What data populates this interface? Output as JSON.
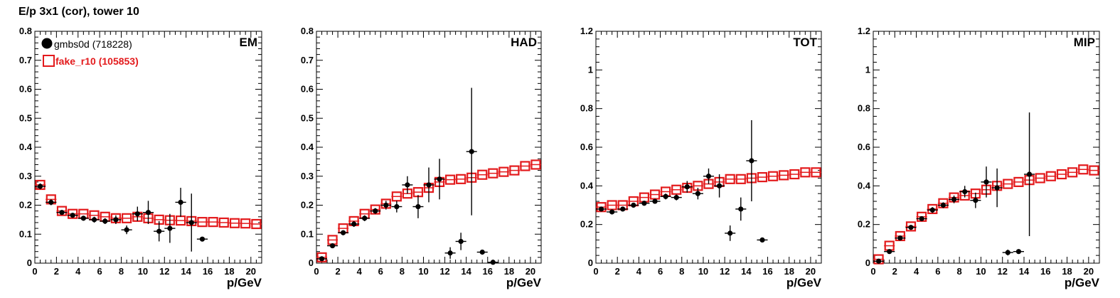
{
  "figure": {
    "title": "E/p 3x1 (cor), tower 10"
  },
  "legend": {
    "series_a": "gmbs0d (718228)",
    "series_b": "fake_r10 (105853)"
  },
  "colors": {
    "series_a": "#000000",
    "series_b": "#e31a1c"
  },
  "chart_data": [
    {
      "type": "scatter",
      "panel": "EM",
      "xlabel": "p/GeV",
      "xlim": [
        0,
        21
      ],
      "ylim": [
        0,
        0.8
      ],
      "xticks": [
        "0",
        "2",
        "4",
        "6",
        "8",
        "10",
        "12",
        "14",
        "16",
        "18",
        "20"
      ],
      "yticks": [
        "0",
        "0.1",
        "0.2",
        "0.3",
        "0.4",
        "0.5",
        "0.6",
        "0.7",
        "0.8"
      ],
      "legend_placement": "top-left",
      "series": [
        {
          "name": "gmbs0d (718228)",
          "marker": "filled-circle",
          "x": [
            0.5,
            1.5,
            2.5,
            3.5,
            4.5,
            5.5,
            6.5,
            7.5,
            8.5,
            9.5,
            10.5,
            11.5,
            12.5,
            13.5,
            14.5,
            15.5
          ],
          "y": [
            0.265,
            0.21,
            0.175,
            0.165,
            0.155,
            0.15,
            0.145,
            0.15,
            0.115,
            0.17,
            0.175,
            0.11,
            0.12,
            0.21,
            0.14,
            0.083
          ],
          "yerr": [
            0.01,
            0.01,
            0.008,
            0.008,
            0.008,
            0.01,
            0.01,
            0.015,
            0.015,
            0.025,
            0.04,
            0.035,
            0.05,
            0.05,
            0.1,
            0.005
          ]
        },
        {
          "name": "fake_r10 (105853)",
          "marker": "open-square",
          "x": [
            0.5,
            1.5,
            2.5,
            3.5,
            4.5,
            5.5,
            6.5,
            7.5,
            8.5,
            9.5,
            10.5,
            11.5,
            12.5,
            13.5,
            14.5,
            15.5,
            16.5,
            17.5,
            18.5,
            19.5,
            20.5
          ],
          "y": [
            0.27,
            0.22,
            0.18,
            0.17,
            0.17,
            0.165,
            0.16,
            0.155,
            0.155,
            0.16,
            0.155,
            0.15,
            0.148,
            0.147,
            0.145,
            0.142,
            0.142,
            0.14,
            0.138,
            0.137,
            0.135
          ]
        }
      ]
    },
    {
      "type": "scatter",
      "panel": "HAD",
      "xlabel": "p/GeV",
      "xlim": [
        0,
        21
      ],
      "ylim": [
        0,
        0.8
      ],
      "xticks": [
        "0",
        "2",
        "4",
        "6",
        "8",
        "10",
        "12",
        "14",
        "16",
        "18",
        "20"
      ],
      "yticks": [
        "0",
        "0.1",
        "0.2",
        "0.3",
        "0.4",
        "0.5",
        "0.6",
        "0.7",
        "0.8"
      ],
      "series": [
        {
          "name": "gmbs0d (718228)",
          "marker": "filled-circle",
          "x": [
            0.5,
            1.5,
            2.5,
            3.5,
            4.5,
            5.5,
            6.5,
            7.5,
            8.5,
            9.5,
            10.5,
            11.5,
            12.5,
            13.5,
            14.5,
            15.5,
            16.5
          ],
          "y": [
            0.015,
            0.06,
            0.105,
            0.135,
            0.155,
            0.18,
            0.2,
            0.195,
            0.27,
            0.195,
            0.27,
            0.29,
            0.035,
            0.075,
            0.385,
            0.038,
            0.003
          ],
          "yerr": [
            0.005,
            0.008,
            0.008,
            0.01,
            0.01,
            0.01,
            0.015,
            0.02,
            0.03,
            0.04,
            0.06,
            0.07,
            0.02,
            0.03,
            0.22,
            0.008,
            0.005
          ]
        },
        {
          "name": "fake_r10 (105853)",
          "marker": "open-square",
          "x": [
            0.5,
            1.5,
            2.5,
            3.5,
            4.5,
            5.5,
            6.5,
            7.5,
            8.5,
            9.5,
            10.5,
            11.5,
            12.5,
            13.5,
            14.5,
            15.5,
            16.5,
            17.5,
            18.5,
            19.5,
            20.5
          ],
          "y": [
            0.02,
            0.08,
            0.12,
            0.145,
            0.17,
            0.185,
            0.205,
            0.23,
            0.24,
            0.245,
            0.26,
            0.28,
            0.288,
            0.29,
            0.295,
            0.305,
            0.31,
            0.315,
            0.32,
            0.335,
            0.34
          ]
        }
      ]
    },
    {
      "type": "scatter",
      "panel": "TOT",
      "xlabel": "p/GeV",
      "xlim": [
        0,
        21
      ],
      "ylim": [
        0,
        1.2
      ],
      "xticks": [
        "0",
        "2",
        "4",
        "6",
        "8",
        "10",
        "12",
        "14",
        "16",
        "18",
        "20"
      ],
      "yticks": [
        "0",
        "0.2",
        "0.4",
        "0.6",
        "0.8",
        "1",
        "1.2"
      ],
      "series": [
        {
          "name": "gmbs0d (718228)",
          "marker": "filled-circle",
          "x": [
            0.5,
            1.5,
            2.5,
            3.5,
            4.5,
            5.5,
            6.5,
            7.5,
            8.5,
            9.5,
            10.5,
            11.5,
            12.5,
            13.5,
            14.5,
            15.5
          ],
          "y": [
            0.28,
            0.265,
            0.28,
            0.3,
            0.31,
            0.32,
            0.345,
            0.34,
            0.395,
            0.36,
            0.45,
            0.4,
            0.155,
            0.28,
            0.53,
            0.12
          ],
          "yerr": [
            0.01,
            0.01,
            0.01,
            0.01,
            0.01,
            0.01,
            0.015,
            0.015,
            0.03,
            0.03,
            0.04,
            0.06,
            0.04,
            0.06,
            0.21,
            0.005
          ]
        },
        {
          "name": "fake_r10 (105853)",
          "marker": "open-square",
          "x": [
            0.5,
            1.5,
            2.5,
            3.5,
            4.5,
            5.5,
            6.5,
            7.5,
            8.5,
            9.5,
            10.5,
            11.5,
            12.5,
            13.5,
            14.5,
            15.5,
            16.5,
            17.5,
            18.5,
            19.5,
            20.5
          ],
          "y": [
            0.29,
            0.3,
            0.3,
            0.32,
            0.34,
            0.355,
            0.37,
            0.38,
            0.39,
            0.4,
            0.41,
            0.42,
            0.435,
            0.435,
            0.44,
            0.445,
            0.45,
            0.455,
            0.46,
            0.47,
            0.47
          ]
        }
      ]
    },
    {
      "type": "scatter",
      "panel": "MIP",
      "xlabel": "p/GeV",
      "xlim": [
        0,
        21
      ],
      "ylim": [
        0,
        1.2
      ],
      "xticks": [
        "0",
        "2",
        "4",
        "6",
        "8",
        "10",
        "12",
        "14",
        "16",
        "18",
        "20"
      ],
      "yticks": [
        "0",
        "0.2",
        "0.4",
        "0.6",
        "0.8",
        "1",
        "1.2"
      ],
      "series": [
        {
          "name": "gmbs0d (718228)",
          "marker": "filled-circle",
          "x": [
            0.5,
            1.5,
            2.5,
            3.5,
            4.5,
            5.5,
            6.5,
            7.5,
            8.5,
            9.5,
            10.5,
            11.5,
            12.5,
            13.5,
            14.5
          ],
          "y": [
            0.01,
            0.06,
            0.13,
            0.185,
            0.23,
            0.275,
            0.3,
            0.33,
            0.37,
            0.325,
            0.42,
            0.39,
            0.055,
            0.06,
            0.46
          ],
          "yerr": [
            0.005,
            0.008,
            0.01,
            0.01,
            0.01,
            0.015,
            0.015,
            0.02,
            0.03,
            0.04,
            0.08,
            0.1,
            0.015,
            0.01,
            0.32
          ]
        },
        {
          "name": "fake_r10 (105853)",
          "marker": "open-square",
          "x": [
            0.5,
            1.5,
            2.5,
            3.5,
            4.5,
            5.5,
            6.5,
            7.5,
            8.5,
            9.5,
            10.5,
            11.5,
            12.5,
            13.5,
            14.5,
            15.5,
            16.5,
            17.5,
            18.5,
            19.5,
            20.5
          ],
          "y": [
            0.02,
            0.09,
            0.14,
            0.19,
            0.24,
            0.28,
            0.31,
            0.34,
            0.35,
            0.36,
            0.38,
            0.4,
            0.41,
            0.42,
            0.43,
            0.44,
            0.45,
            0.46,
            0.47,
            0.485,
            0.48
          ]
        }
      ]
    }
  ]
}
